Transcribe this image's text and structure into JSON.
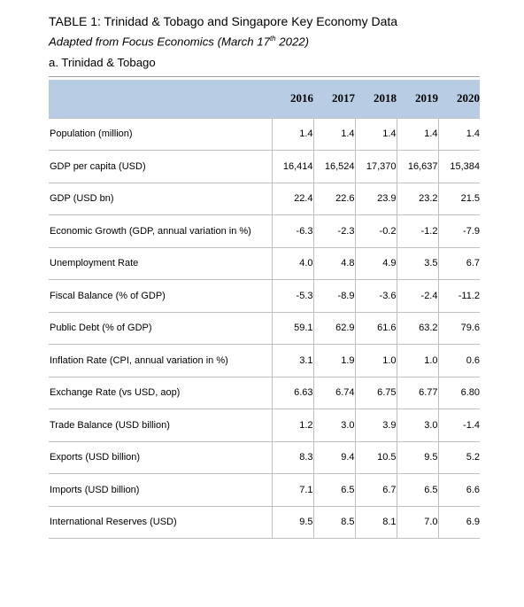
{
  "document": {
    "title": "TABLE 1: Trinidad & Tobago and Singapore Key Economy Data",
    "subtitle_before_sup": "Adapted from Focus Economics (March 17",
    "subtitle_sup": "th",
    "subtitle_after_sup": " 2022)",
    "section": "a. Trinidad & Tobago"
  },
  "table": {
    "years": [
      "2016",
      "2017",
      "2018",
      "2019",
      "2020"
    ],
    "rows": [
      {
        "label": "Population (million)",
        "values": [
          "1.4",
          "1.4",
          "1.4",
          "1.4",
          "1.4"
        ]
      },
      {
        "label": "GDP per capita (USD)",
        "values": [
          "16,414",
          "16,524",
          "17,370",
          "16,637",
          "15,384"
        ]
      },
      {
        "label": "GDP (USD bn)",
        "values": [
          "22.4",
          "22.6",
          "23.9",
          "23.2",
          "21.5"
        ]
      },
      {
        "label": "Economic Growth (GDP, annual variation in %)",
        "values": [
          "-6.3",
          "-2.3",
          "-0.2",
          "-1.2",
          "-7.9"
        ]
      },
      {
        "label": "Unemployment Rate",
        "values": [
          "4.0",
          "4.8",
          "4.9",
          "3.5",
          "6.7"
        ]
      },
      {
        "label": "Fiscal Balance (% of GDP)",
        "values": [
          "-5.3",
          "-8.9",
          "-3.6",
          "-2.4",
          "-11.2"
        ]
      },
      {
        "label": "Public Debt (% of GDP)",
        "values": [
          "59.1",
          "62.9",
          "61.6",
          "63.2",
          "79.6"
        ]
      },
      {
        "label": "Inflation Rate (CPI, annual variation in %)",
        "values": [
          "3.1",
          "1.9",
          "1.0",
          "1.0",
          "0.6"
        ]
      },
      {
        "label": "Exchange Rate (vs USD, aop)",
        "values": [
          "6.63",
          "6.74",
          "6.75",
          "6.77",
          "6.80"
        ]
      },
      {
        "label": "Trade Balance (USD billion)",
        "values": [
          "1.2",
          "3.0",
          "3.9",
          "3.0",
          "-1.4"
        ]
      },
      {
        "label": "Exports (USD billion)",
        "values": [
          "8.3",
          "9.4",
          "10.5",
          "9.5",
          "5.2"
        ]
      },
      {
        "label": "Imports (USD billion)",
        "values": [
          "7.1",
          "6.5",
          "6.7",
          "6.5",
          "6.6"
        ]
      },
      {
        "label": "International Reserves (USD)",
        "values": [
          "9.5",
          "8.5",
          "8.1",
          "7.0",
          "6.9"
        ]
      }
    ]
  }
}
